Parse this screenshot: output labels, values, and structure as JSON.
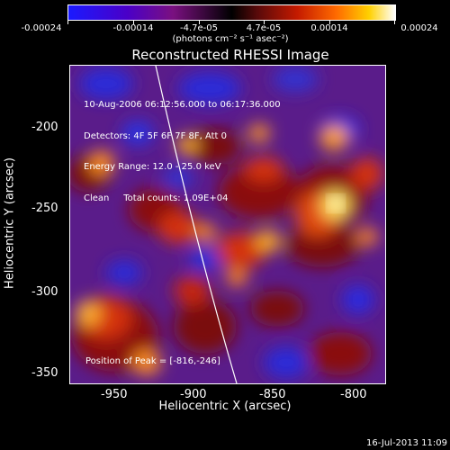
{
  "colorbar": {
    "ticks": [
      "-0.00024",
      "-0.00014",
      "-4.7e-05",
      "4.7e-05",
      "0.00014",
      "0.00024"
    ],
    "units": "(photons cm⁻² s⁻¹ asec⁻²)"
  },
  "title": "Reconstructed RHESSI Image",
  "info": {
    "line1": "10-Aug-2006 06:12:56.000 to 06:17:36.000",
    "line2": "Detectors: 4F 5F 6F 7F 8F, Att 0",
    "line3": "Energy Range: 12.0 - 25.0 keV",
    "line4": "Clean     Total counts: 1.09E+04"
  },
  "peak": "Position of Peak = [-816,-246]",
  "axes": {
    "xlabel": "Heliocentric X (arcsec)",
    "ylabel": "Heliocentric Y (arcsec)",
    "xticks": [
      "-950",
      "-900",
      "-850",
      "-800"
    ],
    "yticks": [
      "-200",
      "-250",
      "-300",
      "-350"
    ]
  },
  "timestamp": "16-Jul-2013 11:09"
}
